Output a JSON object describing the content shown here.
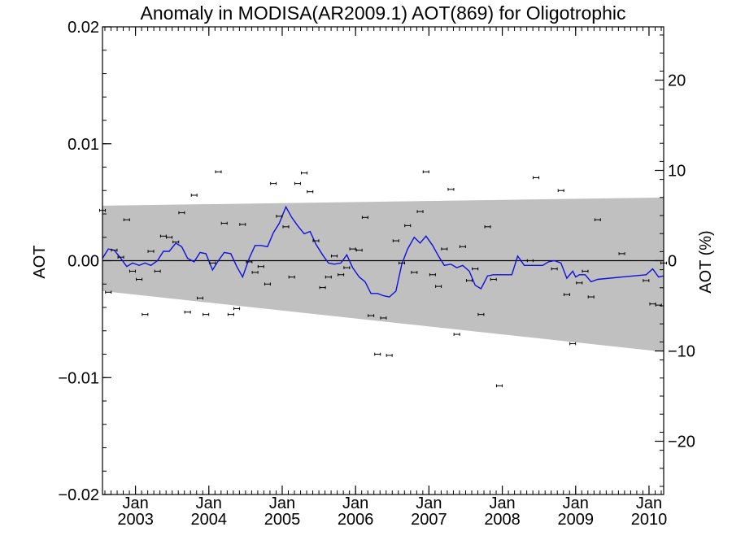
{
  "chart_data": {
    "type": "line",
    "title": "Anomaly in MODISA(AR2009.1) AOT(869) for Oligotrophic",
    "ylabel": "AOT",
    "y2label": "AOT (%)",
    "ylim": [
      -0.02,
      0.02
    ],
    "y2lim": [
      -25.9,
      25.9
    ],
    "xlim": [
      2002.55,
      2010.2
    ],
    "y_ticks": [
      {
        "value": -0.02,
        "label": "−0.02"
      },
      {
        "value": -0.01,
        "label": "−0.01"
      },
      {
        "value": 0.0,
        "label": "0.00"
      },
      {
        "value": 0.01,
        "label": "0.01"
      },
      {
        "value": 0.02,
        "label": "0.02"
      }
    ],
    "y2_ticks": [
      {
        "value": -20,
        "label": "−20"
      },
      {
        "value": -10,
        "label": "−10"
      },
      {
        "value": 0,
        "label": "0"
      },
      {
        "value": 10,
        "label": "10"
      },
      {
        "value": 20,
        "label": "20"
      }
    ],
    "x_ticks": [
      {
        "value": 2003.0,
        "month": "Jan",
        "year": "2003"
      },
      {
        "value": 2004.0,
        "month": "Jan",
        "year": "2004"
      },
      {
        "value": 2005.0,
        "month": "Jan",
        "year": "2005"
      },
      {
        "value": 2006.0,
        "month": "Jan",
        "year": "2006"
      },
      {
        "value": 2007.0,
        "month": "Jan",
        "year": "2007"
      },
      {
        "value": 2008.0,
        "month": "Jan",
        "year": "2008"
      },
      {
        "value": 2009.0,
        "month": "Jan",
        "year": "2009"
      },
      {
        "value": 2010.0,
        "month": "Jan",
        "year": "2010"
      }
    ],
    "band": {
      "x": [
        2002.55,
        2010.2
      ],
      "upper": [
        0.0047,
        0.0054
      ],
      "lower": [
        -0.0026,
        -0.0078
      ],
      "color": "#c0c0c0"
    },
    "monthly_points": {
      "color": "#000000",
      "x": [
        2002.55,
        2002.63,
        2002.71,
        2002.8,
        2002.88,
        2002.96,
        2003.05,
        2003.13,
        2003.21,
        2003.3,
        2003.38,
        2003.46,
        2003.55,
        2003.63,
        2003.71,
        2003.8,
        2003.88,
        2003.96,
        2004.05,
        2004.13,
        2004.21,
        2004.3,
        2004.38,
        2004.46,
        2004.55,
        2004.63,
        2004.71,
        2004.8,
        2004.88,
        2004.96,
        2005.05,
        2005.13,
        2005.21,
        2005.3,
        2005.38,
        2005.46,
        2005.55,
        2005.63,
        2005.71,
        2005.8,
        2005.88,
        2005.96,
        2006.05,
        2006.13,
        2006.21,
        2006.3,
        2006.38,
        2006.46,
        2006.55,
        2006.63,
        2006.71,
        2006.8,
        2006.88,
        2006.96,
        2007.05,
        2007.13,
        2007.21,
        2007.3,
        2007.38,
        2007.46,
        2007.55,
        2007.63,
        2007.71,
        2007.8,
        2007.88,
        2007.96,
        2008.38,
        2008.46,
        2008.71,
        2008.8,
        2008.88,
        2008.96,
        2009.05,
        2009.13,
        2009.21,
        2009.3,
        2009.63,
        2009.96,
        2010.05,
        2010.13,
        2010.2
      ],
      "y": [
        0.0043,
        -0.0027,
        0.0009,
        0.0003,
        0.0035,
        -0.0009,
        -0.0016,
        -0.0046,
        0.0008,
        -0.0009,
        0.0021,
        0.002,
        0.0016,
        0.0041,
        -0.0044,
        0.0056,
        -0.0032,
        -0.0046,
        -0.0002,
        0.0076,
        0.0032,
        -0.0046,
        -0.0041,
        0.0031,
        -0.0001,
        -0.001,
        -0.0005,
        -0.002,
        0.0066,
        0.0038,
        0.0029,
        -0.0014,
        0.0066,
        0.0075,
        0.0059,
        0.0017,
        -0.0023,
        -0.0014,
        0.0004,
        -0.0012,
        -0.0006,
        0.001,
        0.0009,
        0.0037,
        -0.0047,
        -0.008,
        -0.0049,
        -0.0081,
        0.0017,
        -0.0002,
        0.003,
        -0.001,
        0.0042,
        0.0076,
        -0.0012,
        -0.0022,
        0.001,
        0.0061,
        -0.0063,
        0.0012,
        -0.0017,
        -0.0007,
        -0.0046,
        0.0029,
        -0.0016,
        -0.0107,
        0.0,
        0.0071,
        -0.0007,
        0.006,
        -0.0029,
        -0.0071,
        -0.0019,
        -0.0009,
        -0.0031,
        0.0035,
        0.0006,
        -0.0017,
        -0.0037,
        -0.0038,
        -0.0002
      ]
    },
    "smoothed_line": {
      "color": "#1010dd",
      "x": [
        2002.55,
        2002.63,
        2002.71,
        2002.8,
        2002.88,
        2002.96,
        2003.05,
        2003.13,
        2003.21,
        2003.3,
        2003.38,
        2003.46,
        2003.55,
        2003.63,
        2003.71,
        2003.8,
        2003.88,
        2003.96,
        2004.05,
        2004.13,
        2004.21,
        2004.3,
        2004.38,
        2004.46,
        2004.55,
        2004.63,
        2004.71,
        2004.8,
        2004.88,
        2004.96,
        2005.05,
        2005.13,
        2005.21,
        2005.3,
        2005.38,
        2005.46,
        2005.55,
        2005.63,
        2005.71,
        2005.8,
        2005.88,
        2005.96,
        2006.05,
        2006.13,
        2006.21,
        2006.3,
        2006.38,
        2006.46,
        2006.55,
        2006.63,
        2006.71,
        2006.8,
        2006.88,
        2006.96,
        2007.05,
        2007.13,
        2007.21,
        2007.3,
        2007.38,
        2007.46,
        2007.55,
        2007.63,
        2007.71,
        2007.8,
        2007.88,
        2007.96,
        2008.05,
        2008.13,
        2008.21,
        2008.3,
        2008.38,
        2008.46,
        2008.55,
        2008.63,
        2008.71,
        2008.8,
        2008.88,
        2008.96,
        2009.0,
        2009.05,
        2009.1,
        2009.13,
        2009.21,
        2009.3,
        2009.63,
        2009.96,
        2010.05,
        2010.13,
        2010.2
      ],
      "y": [
        0.0002,
        0.001,
        0.0009,
        0.0002,
        -0.0005,
        -0.0002,
        -0.0004,
        -0.0002,
        -0.0004,
        0.0,
        0.0008,
        0.0008,
        0.0015,
        0.0012,
        0.0002,
        -0.0001,
        0.0007,
        0.0006,
        -0.0008,
        0.0,
        0.0007,
        0.0006,
        -0.0005,
        -0.0014,
        0.0002,
        0.0013,
        0.0013,
        0.0012,
        0.0024,
        0.0032,
        0.0046,
        0.0037,
        0.003,
        0.0023,
        0.0025,
        0.0014,
        0.0005,
        -0.0002,
        -0.0003,
        -0.0002,
        0.0005,
        -0.0006,
        -0.0014,
        -0.0018,
        -0.0028,
        -0.0028,
        -0.003,
        -0.0031,
        -0.0026,
        -0.0003,
        0.001,
        0.002,
        0.0015,
        0.0021,
        0.0013,
        0.0004,
        -0.0004,
        -0.0003,
        -0.0006,
        -0.0004,
        -0.0009,
        -0.0021,
        -0.0024,
        -0.0013,
        -0.0012,
        -0.0012,
        -0.0012,
        -0.0012,
        0.0004,
        -0.0004,
        -0.0004,
        -0.0004,
        -0.0004,
        -0.0001,
        0.0,
        -0.0002,
        -0.0015,
        -0.0009,
        -0.0014,
        -0.0012,
        -0.0012,
        -0.0012,
        -0.0018,
        -0.0016,
        -0.0014,
        -0.0012,
        -0.0007,
        -0.0014,
        -0.0013
      ]
    },
    "zero_line": 0.0,
    "grid": false,
    "legend": "none"
  }
}
